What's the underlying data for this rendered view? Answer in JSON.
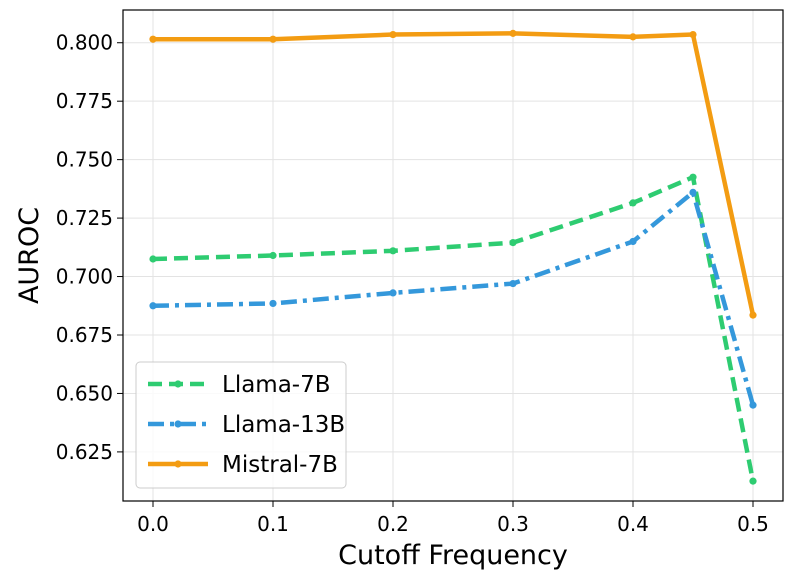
{
  "chart_data": {
    "type": "line",
    "title": "",
    "xlabel": "Cutoff Frequency",
    "ylabel": "AUROC",
    "x": [
      0.0,
      0.1,
      0.2,
      0.3,
      0.4,
      0.45,
      0.5
    ],
    "xlim": [
      -0.025,
      0.525
    ],
    "ylim": [
      0.604,
      0.814
    ],
    "xticks": [
      0.0,
      0.1,
      0.2,
      0.3,
      0.4,
      0.5
    ],
    "xtick_labels": [
      "0.0",
      "0.1",
      "0.2",
      "0.3",
      "0.4",
      "0.5"
    ],
    "yticks": [
      0.625,
      0.65,
      0.675,
      0.7,
      0.725,
      0.75,
      0.775,
      0.8
    ],
    "ytick_labels": [
      "0.625",
      "0.650",
      "0.675",
      "0.700",
      "0.725",
      "0.750",
      "0.775",
      "0.800"
    ],
    "grid": true,
    "legend_position": "lower-left",
    "series": [
      {
        "name": "Llama-7B",
        "color": "#2ecc71",
        "line_style": "dashed",
        "values": [
          0.7075,
          0.709,
          0.711,
          0.7145,
          0.7315,
          0.7425,
          0.6125
        ]
      },
      {
        "name": "Llama-13B",
        "color": "#3498db",
        "line_style": "dashdot",
        "values": [
          0.6875,
          0.6885,
          0.693,
          0.697,
          0.715,
          0.736,
          0.645
        ]
      },
      {
        "name": "Mistral-7B",
        "color": "#f39c12",
        "line_style": "solid",
        "values": [
          0.8015,
          0.8015,
          0.8035,
          0.804,
          0.8025,
          0.8035,
          0.6835
        ]
      }
    ]
  }
}
